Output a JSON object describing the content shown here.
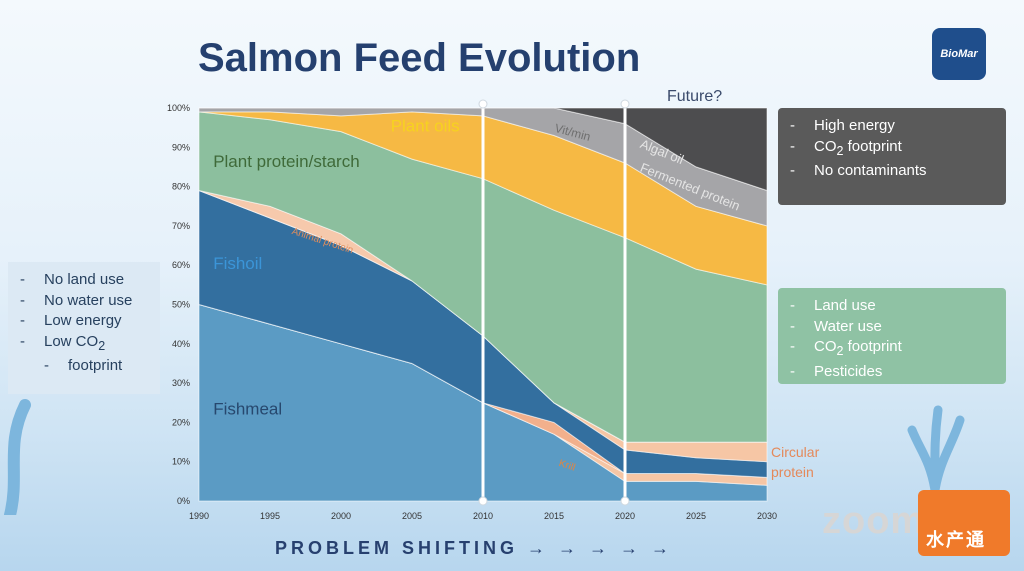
{
  "title": "Salmon Feed Evolution",
  "logo_text": "BioMar",
  "left_panel": {
    "items": [
      "No land use",
      "No water use",
      "Low energy"
    ],
    "co2_prefix": "Low CO",
    "co2_sub": "2",
    "co2_suffix": "footprint"
  },
  "top_panel": {
    "item1": "High energy",
    "co2_prefix": "CO",
    "co2_sub": "2",
    "co2_suffix": " footprint",
    "item3": "No contaminants"
  },
  "mid_panel": {
    "item1": "Land use",
    "item2": "Water use",
    "co2_prefix": "CO",
    "co2_sub": "2",
    "co2_suffix": " footprint",
    "item4": "Pesticides"
  },
  "future_label": "Future?",
  "circular_label_line1": "Circular",
  "circular_label_line2": "protein",
  "footer_text": "PROBLEM SHIFTING → → → → →",
  "zoom_watermark": "zoom",
  "badge_text": "水产通",
  "chart_data": {
    "type": "area",
    "stacked": true,
    "x": [
      1990,
      1995,
      2000,
      2005,
      2010,
      2015,
      2020,
      2025,
      2030
    ],
    "xticks": [
      "1990",
      "1995",
      "2000",
      "2005",
      "2010",
      "2015",
      "2020",
      "2025",
      "2030"
    ],
    "yticks": [
      "0%",
      "10%",
      "20%",
      "30%",
      "40%",
      "50%",
      "60%",
      "70%",
      "80%",
      "90%",
      "100%"
    ],
    "ylim": [
      0,
      100
    ],
    "vertical_markers": [
      2010,
      2020
    ],
    "series": [
      {
        "name": "Fishmeal",
        "color": "#5b9bc4",
        "values": [
          50,
          45,
          40,
          35,
          25,
          17,
          5,
          5,
          4
        ]
      },
      {
        "name": "Circular protein",
        "color": "#f6c6a5",
        "values": [
          0,
          0,
          0,
          0,
          0,
          0,
          2,
          2,
          2
        ]
      },
      {
        "name": "Krill",
        "color": "#f2b08c",
        "values": [
          0,
          0,
          0,
          0,
          0,
          3,
          0,
          0,
          0
        ]
      },
      {
        "name": "Fishoil",
        "color": "#336f9f",
        "values": [
          29,
          27,
          25,
          21,
          17,
          5,
          6,
          4,
          4
        ]
      },
      {
        "name": "Circular protein",
        "color": "#f6c6a5",
        "values": [
          0,
          0,
          0,
          0,
          0,
          0,
          2,
          4,
          5
        ]
      },
      {
        "name": "Animal protein",
        "color": "#f6c9ac",
        "values": [
          0,
          3,
          3,
          0,
          0,
          0,
          0,
          0,
          0
        ]
      },
      {
        "name": "Plant protein/starch",
        "color": "#8cbf9e",
        "values": [
          20,
          22,
          26,
          31,
          40,
          49,
          52,
          44,
          40
        ]
      },
      {
        "name": "Plant oils",
        "color": "#f6b944",
        "values": [
          0,
          2,
          4,
          12,
          16,
          19,
          19,
          16,
          15
        ]
      },
      {
        "name": "Vit/min",
        "color": "#a5a5a8",
        "values": [
          1,
          1,
          2,
          1,
          2,
          7,
          10,
          10,
          9
        ]
      },
      {
        "name": "Algal oil / Fermented protein",
        "color": "#4d4d4f",
        "values": [
          0,
          0,
          0,
          0,
          0,
          0,
          4,
          15,
          21
        ]
      }
    ],
    "labels": [
      {
        "text": "Plant protein/starch",
        "color": "#3f6a39",
        "x": 1991,
        "y": 85
      },
      {
        "text": "Plant oils",
        "color": "#f7d21f",
        "x": 2003.5,
        "y": 94
      },
      {
        "text": "Fishoil",
        "color": "#3b95d8",
        "x": 1991,
        "y": 59
      },
      {
        "text": "Fishmeal",
        "color": "#27486e",
        "x": 1991,
        "y": 22
      },
      {
        "text": "Animal protein",
        "color": "#e08d5c",
        "x": 1996.5,
        "y": 68
      },
      {
        "text": "Vit/min",
        "color": "#6f6f6f",
        "x": 2015,
        "y": 94
      },
      {
        "text": "Krill",
        "color": "#e3853f",
        "x": 2015.3,
        "y": 9
      },
      {
        "text": "Algal oil",
        "color": "#e4e4e4",
        "x": 2021,
        "y": 90
      },
      {
        "text": "Fermented protein",
        "color": "#e4e4e4",
        "x": 2021,
        "y": 84
      }
    ]
  }
}
